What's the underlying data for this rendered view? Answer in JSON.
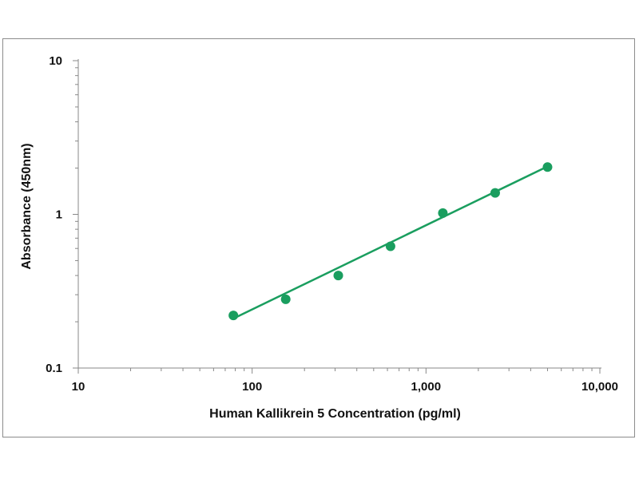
{
  "chart_data": {
    "type": "scatter",
    "title": "",
    "xlabel": "Human Kallikrein 5 Concentration (pg/ml)",
    "ylabel": "Absorbance (450nm)",
    "x_scale": "log",
    "y_scale": "log",
    "xlim": [
      10,
      10000
    ],
    "ylim": [
      0.1,
      10
    ],
    "x_ticks": [
      {
        "value": 10,
        "label": "10"
      },
      {
        "value": 100,
        "label": "100"
      },
      {
        "value": 1000,
        "label": "1,000"
      },
      {
        "value": 10000,
        "label": "10,000"
      }
    ],
    "y_ticks": [
      {
        "value": 0.1,
        "label": "0.1"
      },
      {
        "value": 1,
        "label": "1"
      },
      {
        "value": 10,
        "label": "10"
      }
    ],
    "grid": false,
    "legend": "none",
    "colors": {
      "series": "#1a9e5f",
      "axis": "#888888",
      "border": "#8c8c8c"
    },
    "series": [
      {
        "points": [
          {
            "x": 78,
            "y": 0.22
          },
          {
            "x": 156,
            "y": 0.28
          },
          {
            "x": 313,
            "y": 0.4
          },
          {
            "x": 625,
            "y": 0.62
          },
          {
            "x": 1250,
            "y": 1.02
          },
          {
            "x": 2500,
            "y": 1.38
          },
          {
            "x": 5000,
            "y": 2.03
          }
        ]
      }
    ],
    "fit_line": {
      "from": {
        "x": 78,
        "y": 0.21
      },
      "to": {
        "x": 5000,
        "y": 2.05
      }
    }
  }
}
